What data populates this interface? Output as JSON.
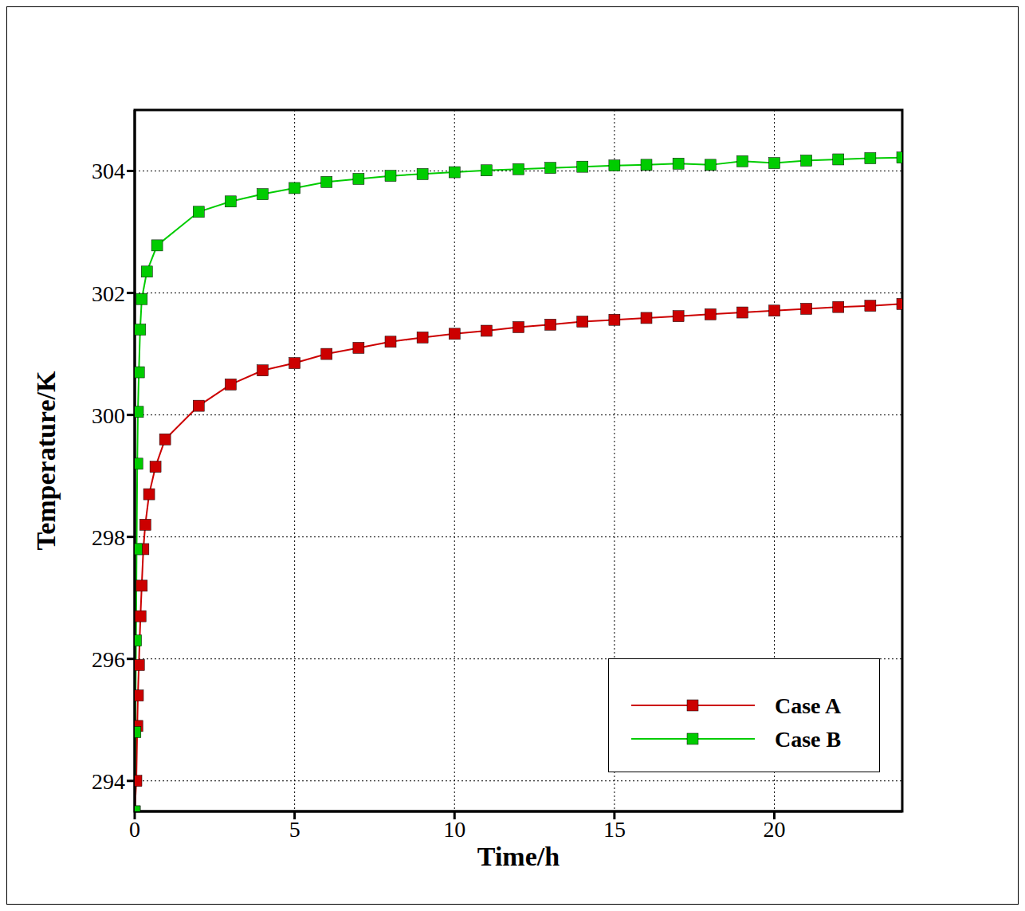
{
  "chart_data": {
    "type": "line",
    "xlabel": "Time/h",
    "ylabel": "Temperature/K",
    "xlim": [
      0,
      24
    ],
    "xticks": [
      0,
      5,
      10,
      15,
      20
    ],
    "ylim": [
      293.5,
      305
    ],
    "yticks": [
      294,
      296,
      298,
      300,
      302,
      304
    ],
    "grid": true,
    "legend": "lower right",
    "marker": "square",
    "series": [
      {
        "name": "Case A",
        "color": "#cc0000",
        "x": [
          0,
          0.05,
          0.08,
          0.1,
          0.13,
          0.18,
          0.22,
          0.27,
          0.33,
          0.45,
          0.65,
          0.95,
          2,
          3,
          4,
          5,
          6,
          7,
          8,
          9,
          10,
          11,
          12,
          13,
          14,
          15,
          16,
          17,
          18,
          19,
          20,
          21,
          22,
          23,
          24
        ],
        "values": [
          293.5,
          294.0,
          294.9,
          295.4,
          295.9,
          296.7,
          297.2,
          297.8,
          298.2,
          298.7,
          299.15,
          299.6,
          300.15,
          300.5,
          300.73,
          300.85,
          301.0,
          301.1,
          301.2,
          301.27,
          301.33,
          301.38,
          301.44,
          301.48,
          301.53,
          301.56,
          301.59,
          301.62,
          301.65,
          301.68,
          301.71,
          301.74,
          301.77,
          301.79,
          301.82
        ]
      },
      {
        "name": "Case B",
        "color": "#00cc00",
        "x": [
          0,
          0.02,
          0.04,
          0.06,
          0.08,
          0.1,
          0.13,
          0.17,
          0.22,
          0.38,
          0.7,
          2,
          3,
          4,
          5,
          6,
          7,
          8,
          9,
          10,
          11,
          12,
          13,
          14,
          15,
          16,
          17,
          18,
          19,
          20,
          21,
          22,
          23,
          24
        ],
        "values": [
          293.5,
          294.8,
          296.3,
          297.8,
          299.2,
          300.05,
          300.7,
          301.4,
          301.9,
          302.35,
          302.78,
          303.33,
          303.5,
          303.62,
          303.72,
          303.82,
          303.87,
          303.92,
          303.95,
          303.98,
          304.01,
          304.03,
          304.05,
          304.07,
          304.09,
          304.1,
          304.12,
          304.1,
          304.16,
          304.13,
          304.17,
          304.19,
          304.21,
          304.22
        ]
      }
    ]
  }
}
